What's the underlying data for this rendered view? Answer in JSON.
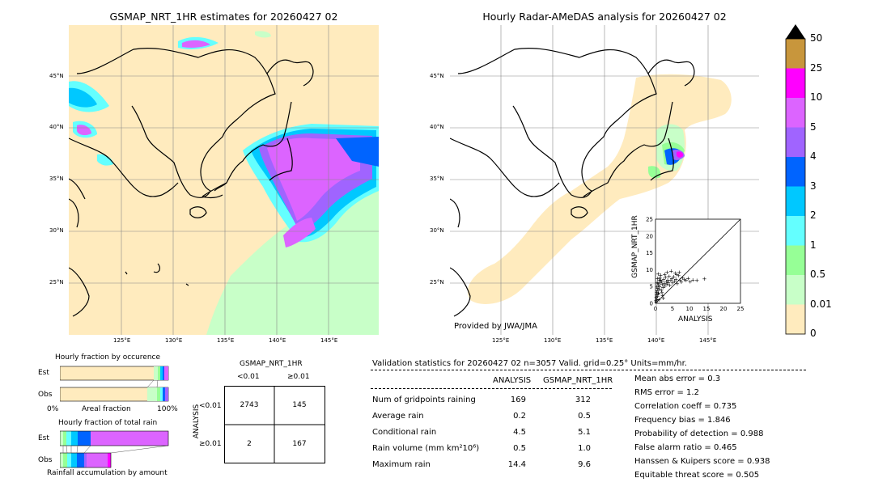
{
  "left_map": {
    "title": "GSMAP_NRT_1HR estimates for 20260427 02",
    "lat_labels": [
      "45°N",
      "40°N",
      "35°N",
      "30°N",
      "25°N"
    ],
    "lon_labels": [
      "125°E",
      "130°E",
      "135°E",
      "140°E",
      "145°E"
    ]
  },
  "right_map": {
    "title": "Hourly Radar-AMeDAS analysis for 20260427 02",
    "lat_labels": [
      "45°N",
      "40°N",
      "35°N",
      "30°N",
      "25°N"
    ],
    "lon_labels": [
      "125°E",
      "130°E",
      "135°E",
      "140°E",
      "145°E"
    ],
    "credit": "Provided by JWA/JMA"
  },
  "colorbar": {
    "labels": [
      "50",
      "25",
      "10",
      "5",
      "4",
      "3",
      "2",
      "1",
      "0.5",
      "0.01",
      "0"
    ],
    "colors": [
      "#c8963c",
      "#ff00ff",
      "#dc64ff",
      "#a064ff",
      "#0064ff",
      "#00c8ff",
      "#64ffff",
      "#96ff96",
      "#c8ffc8",
      "#ffebbe"
    ]
  },
  "fraction_occurrence": {
    "title": "Hourly fraction by occurence",
    "row_labels": [
      "Est",
      "Obs"
    ],
    "axis_left": "0%",
    "axis_mid": "Areal fraction",
    "axis_right": "100%"
  },
  "fraction_total": {
    "title": "Hourly fraction of total rain",
    "row_labels": [
      "Est",
      "Obs"
    ],
    "footer": "Rainfall accumulation by amount"
  },
  "contingency": {
    "col_title": "GSMAP_NRT_1HR",
    "col_labels": [
      "<0.01",
      "≥0.01"
    ],
    "row_title": "ANALYSIS",
    "row_labels": [
      "<0.01",
      "≥0.01"
    ],
    "cells": [
      [
        "2743",
        "145"
      ],
      [
        "2",
        "167"
      ]
    ]
  },
  "validation": {
    "header": "Validation statistics for 20260427 02  n=3057 Valid. grid=0.25° Units=mm/hr.",
    "col_analysis": "ANALYSIS",
    "col_gsmap": "GSMAP_NRT_1HR",
    "rows": [
      {
        "label": "Num of gridpoints raining",
        "analysis": "169",
        "gsmap": "312"
      },
      {
        "label": "Average rain",
        "analysis": "0.2",
        "gsmap": "0.5"
      },
      {
        "label": "Conditional rain",
        "analysis": "4.5",
        "gsmap": "5.1"
      },
      {
        "label": "Rain volume (mm km²10⁶)",
        "analysis": "0.5",
        "gsmap": "1.0"
      },
      {
        "label": "Maximum rain",
        "analysis": "14.4",
        "gsmap": "9.6"
      }
    ],
    "scores": [
      "Mean abs error =    0.3",
      "RMS error =    1.2",
      "Correlation coeff =  0.735",
      "Frequency bias =  1.846",
      "Probability of detection =  0.988",
      "False alarm ratio =  0.465",
      "Hanssen & Kuipers score =  0.938",
      "Equitable threat score =  0.505"
    ]
  },
  "chart_data": {
    "type": "scatter",
    "xlabel": "ANALYSIS",
    "ylabel": "GSMAP_NRT_1HR",
    "xlim": [
      0,
      25
    ],
    "ylim": [
      0,
      25
    ],
    "ticks": [
      "0",
      "5",
      "10",
      "15",
      "20",
      "25"
    ],
    "points": [
      [
        0.2,
        0.5
      ],
      [
        0.4,
        1.2
      ],
      [
        0.6,
        2.0
      ],
      [
        0.8,
        3.1
      ],
      [
        1.0,
        4.2
      ],
      [
        1.2,
        5.0
      ],
      [
        1.4,
        6.1
      ],
      [
        1.6,
        7.0
      ],
      [
        1.8,
        6.5
      ],
      [
        2.0,
        5.6
      ],
      [
        2.2,
        4.8
      ],
      [
        2.4,
        7.2
      ],
      [
        2.6,
        6.0
      ],
      [
        2.8,
        5.2
      ],
      [
        3.0,
        7.8
      ],
      [
        3.2,
        6.4
      ],
      [
        3.4,
        5.8
      ],
      [
        3.6,
        7.0
      ],
      [
        3.8,
        6.2
      ],
      [
        4.0,
        8.1
      ],
      [
        4.2,
        5.4
      ],
      [
        4.5,
        6.8
      ],
      [
        4.8,
        7.5
      ],
      [
        5.0,
        6.1
      ],
      [
        5.3,
        7.9
      ],
      [
        5.6,
        6.6
      ],
      [
        6.0,
        7.2
      ],
      [
        6.4,
        5.9
      ],
      [
        6.8,
        8.3
      ],
      [
        7.2,
        7.0
      ],
      [
        7.6,
        6.4
      ],
      [
        8.0,
        7.6
      ],
      [
        8.5,
        7.1
      ],
      [
        9.0,
        6.8
      ],
      [
        9.6,
        7.4
      ],
      [
        10.2,
        6.5
      ],
      [
        11.0,
        7.0
      ],
      [
        12.2,
        6.9
      ],
      [
        14.4,
        7.3
      ],
      [
        0.3,
        2.6
      ],
      [
        0.5,
        3.8
      ],
      [
        0.7,
        4.6
      ],
      [
        0.9,
        5.5
      ],
      [
        1.1,
        6.9
      ],
      [
        1.3,
        7.6
      ],
      [
        1.5,
        8.4
      ],
      [
        1.7,
        4.0
      ],
      [
        1.9,
        3.2
      ],
      [
        2.1,
        2.4
      ],
      [
        2.3,
        1.6
      ],
      [
        0.1,
        0.9
      ],
      [
        0.2,
        1.8
      ],
      [
        0.3,
        3.3
      ],
      [
        0.4,
        4.9
      ],
      [
        0.5,
        6.3
      ],
      [
        0.6,
        7.4
      ],
      [
        0.7,
        5.9
      ],
      [
        0.8,
        8.8
      ],
      [
        0.9,
        2.9
      ],
      [
        1.0,
        1.1
      ],
      [
        5.8,
        9.0
      ],
      [
        6.2,
        8.6
      ],
      [
        7.0,
        9.3
      ],
      [
        3.4,
        9.2
      ],
      [
        2.7,
        8.7
      ],
      [
        4.6,
        9.6
      ]
    ]
  }
}
